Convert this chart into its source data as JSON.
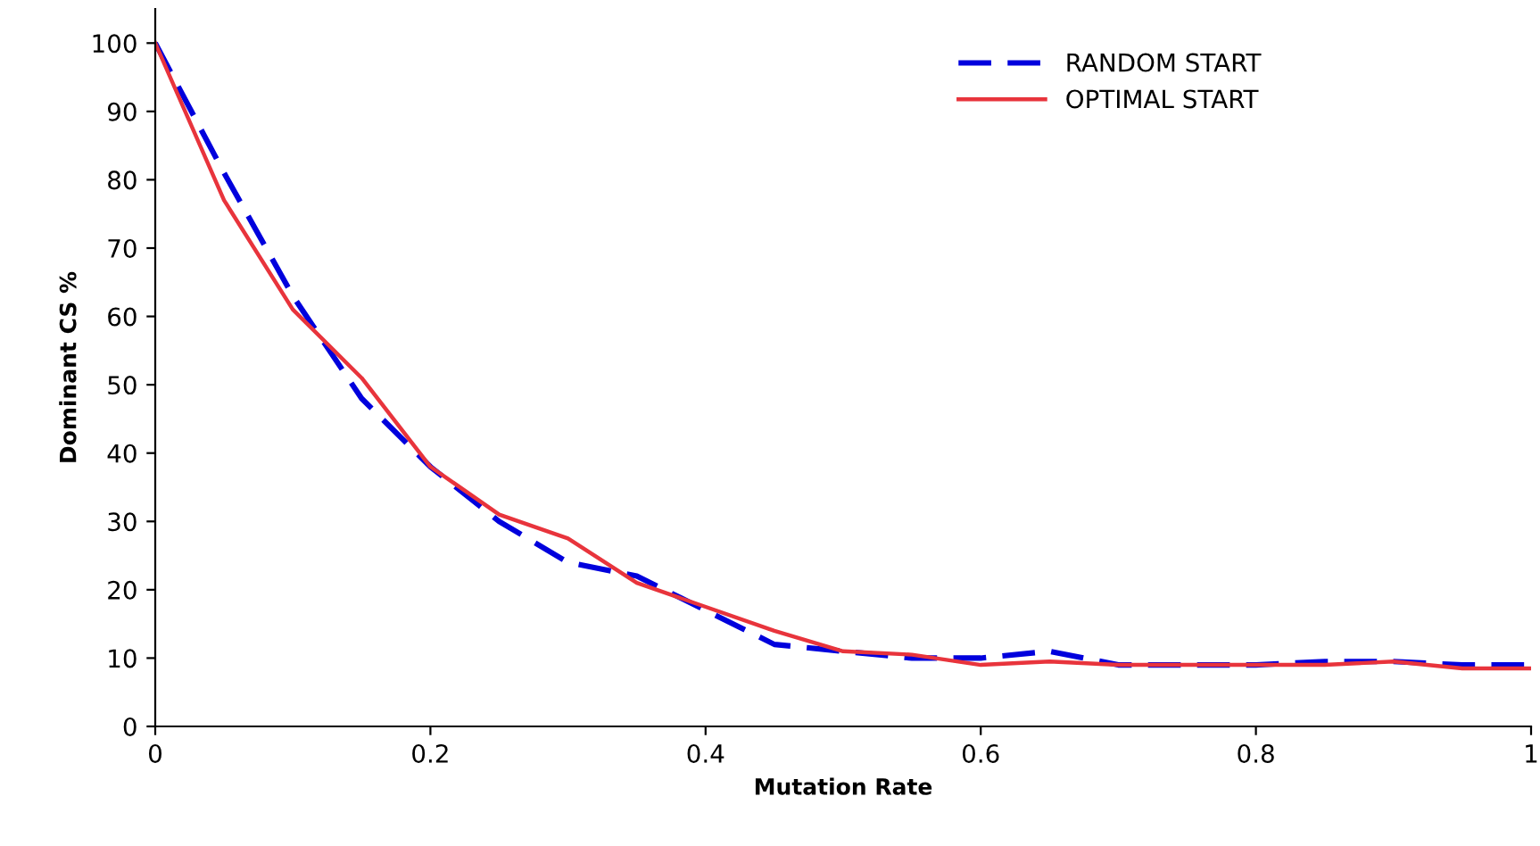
{
  "chart_data": {
    "type": "line",
    "xlabel": "Mutation Rate",
    "ylabel": "Dominant CS %",
    "x": [
      0,
      0.05,
      0.1,
      0.15,
      0.2,
      0.25,
      0.3,
      0.35,
      0.4,
      0.45,
      0.5,
      0.55,
      0.6,
      0.65,
      0.7,
      0.75,
      0.8,
      0.85,
      0.9,
      0.95,
      1
    ],
    "series": [
      {
        "name": "RANDOM START",
        "color": "#0000dd",
        "line_style": "dashed",
        "values": [
          100,
          81,
          63,
          48,
          38,
          30,
          24,
          22,
          17,
          12,
          11,
          10,
          10,
          11,
          9,
          9,
          9,
          9.5,
          9.5,
          9,
          9
        ]
      },
      {
        "name": "OPTIMAL START",
        "color": "#e8343c",
        "line_style": "solid",
        "values": [
          100,
          77,
          61,
          51,
          38,
          31,
          27.5,
          21,
          17.5,
          14,
          11,
          10.5,
          9,
          9.5,
          9,
          9,
          9,
          9,
          9.5,
          8.5,
          8.5
        ]
      }
    ],
    "xlim": [
      0,
      1
    ],
    "xticks": [
      0,
      0.2,
      0.4,
      0.6,
      0.8,
      1
    ],
    "ylim": [
      0,
      105
    ],
    "yticks": [
      0,
      10,
      20,
      30,
      40,
      50,
      60,
      70,
      80,
      90,
      100
    ],
    "grid": false,
    "legend": "top right",
    "marker": "none"
  }
}
